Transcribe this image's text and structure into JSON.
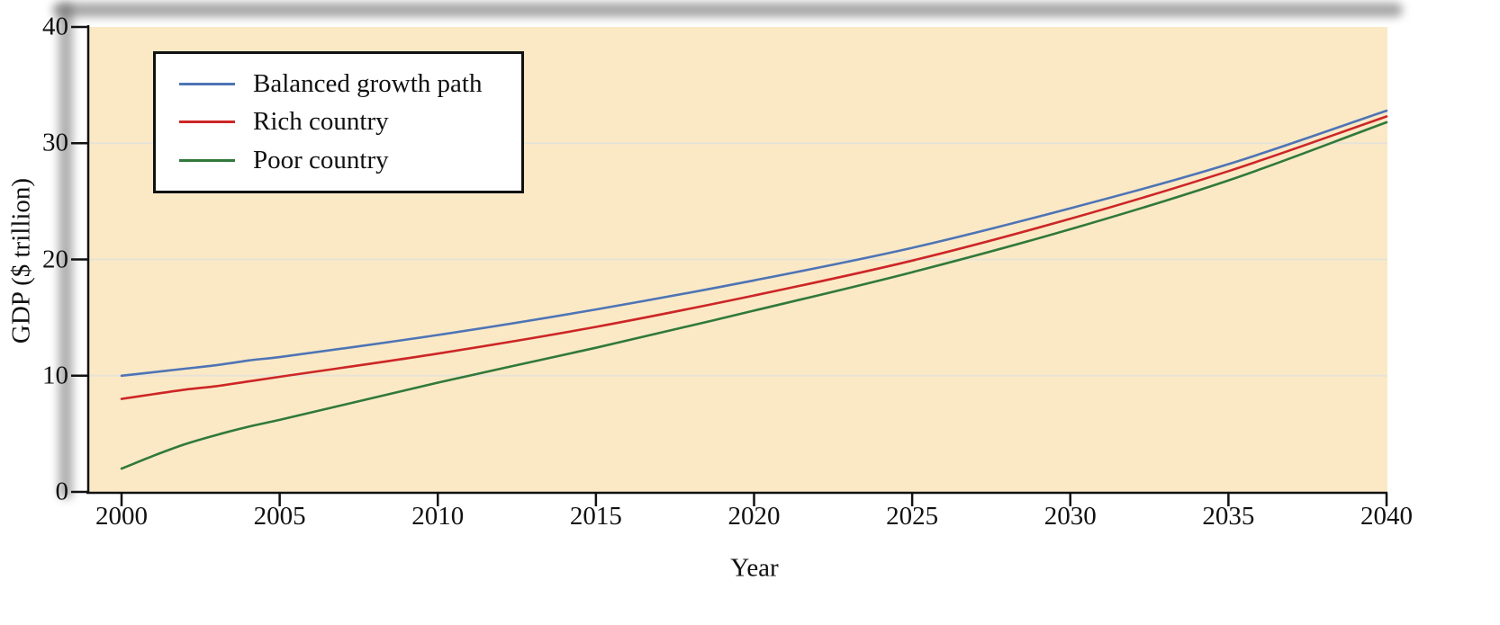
{
  "chart_data": {
    "type": "line",
    "title": "",
    "xlabel": "Year",
    "ylabel": "GDP ($ trillion)",
    "xlim": [
      2000,
      2040
    ],
    "ylim": [
      0,
      40
    ],
    "x_ticks": [
      2000,
      2005,
      2010,
      2015,
      2020,
      2025,
      2030,
      2035,
      2040
    ],
    "y_ticks": [
      0,
      10,
      20,
      30,
      40
    ],
    "grid_y": [
      10,
      20,
      30
    ],
    "grid_on": true,
    "legend_position": "top-left",
    "plot_bg_color": "#fbe9c6",
    "grid_color": "#e6e2d6",
    "axis_color": "#111111",
    "x": [
      2000,
      2001,
      2002,
      2003,
      2004,
      2005,
      2010,
      2015,
      2020,
      2025,
      2030,
      2035,
      2040
    ],
    "series": [
      {
        "name": "Balanced growth path",
        "color": "#4e74b5",
        "values": [
          10,
          10.3,
          10.6,
          10.9,
          11.3,
          11.6,
          13.5,
          15.7,
          18.2,
          21.0,
          24.4,
          28.2,
          32.8
        ]
      },
      {
        "name": "Rich country",
        "color": "#cd2626",
        "values": [
          8,
          8.4,
          8.8,
          9.1,
          9.5,
          9.9,
          11.9,
          14.2,
          16.9,
          19.9,
          23.5,
          27.6,
          32.3
        ]
      },
      {
        "name": "Poor country",
        "color": "#31793a",
        "values": [
          2,
          3.1,
          4.1,
          4.9,
          5.6,
          6.2,
          9.4,
          12.4,
          15.6,
          18.9,
          22.6,
          26.8,
          31.8
        ]
      }
    ]
  }
}
